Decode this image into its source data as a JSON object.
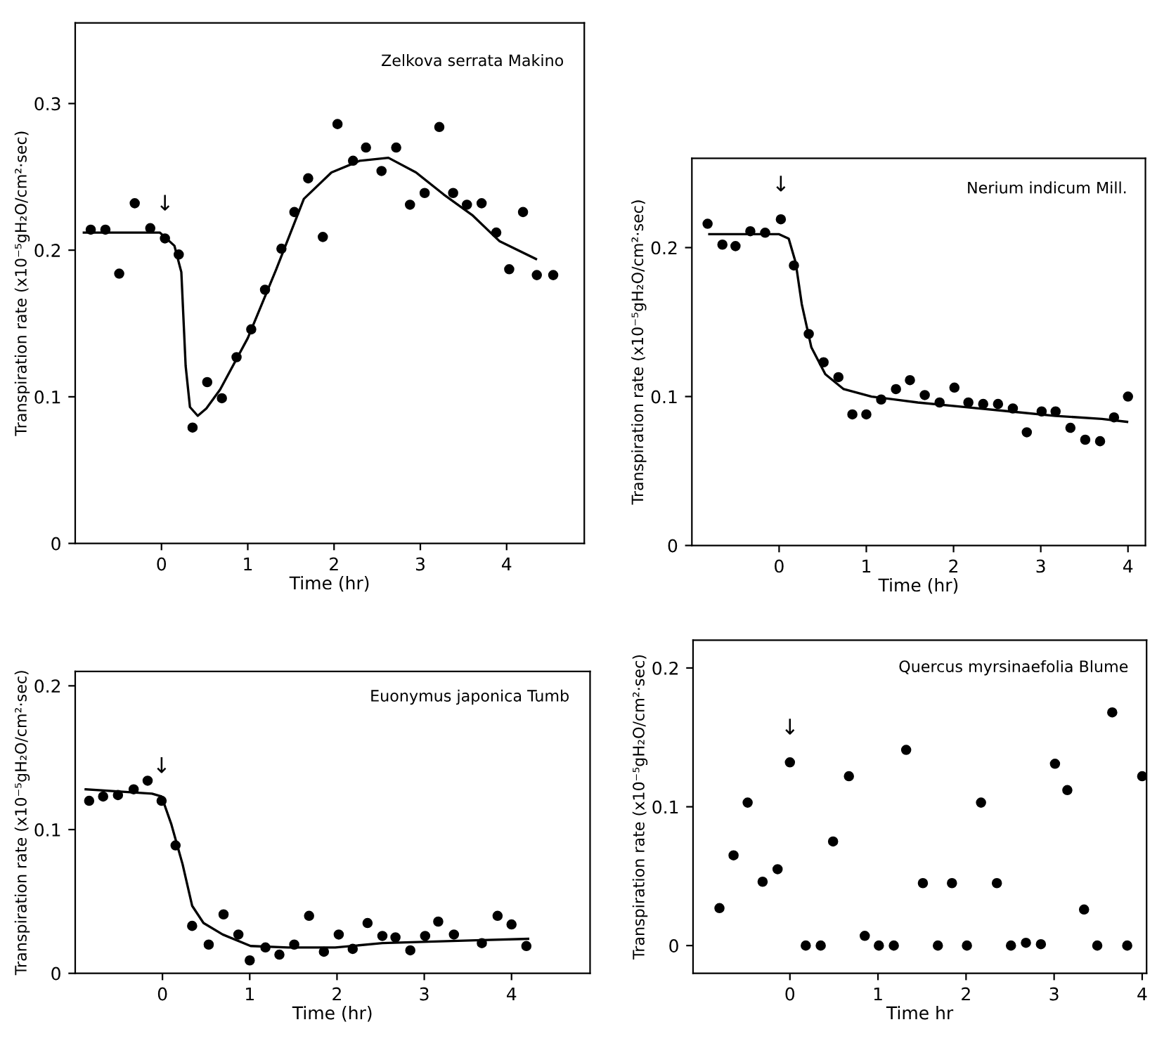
{
  "chart_data": [
    {
      "type": "scatter",
      "title": "Zelkova serrata Makino",
      "xlabel": "Time (hr)",
      "ylabel": "Transpiration rate (x10⁻⁵gH₂O/cm²·sec)",
      "xlim": [
        -1.0,
        4.9
      ],
      "ylim": [
        0,
        0.355
      ],
      "xticks": [
        0,
        1,
        2,
        3,
        4
      ],
      "yticks": [
        0,
        0.1,
        0.2,
        0.3
      ],
      "annotations": [
        {
          "text": "↓",
          "x": 0.04,
          "y": 0.208
        }
      ],
      "series": [
        {
          "marker": "circle",
          "color": "#000000",
          "x": [
            -0.82,
            -0.65,
            -0.49,
            -0.31,
            -0.13,
            0.04,
            0.2,
            0.36,
            0.53,
            0.7,
            0.87,
            1.04,
            1.2,
            1.39,
            1.54,
            1.7,
            1.87,
            2.04,
            2.22,
            2.37,
            2.55,
            2.72,
            2.88,
            3.05,
            3.22,
            3.38,
            3.54,
            3.71,
            3.88,
            4.03,
            4.19,
            4.35,
            4.54
          ],
          "values": [
            0.214,
            0.214,
            0.184,
            0.232,
            0.215,
            0.208,
            0.197,
            0.079,
            0.11,
            0.099,
            0.127,
            0.146,
            0.173,
            0.201,
            0.226,
            0.249,
            0.209,
            0.286,
            0.261,
            0.27,
            0.254,
            0.27,
            0.231,
            0.239,
            0.284,
            0.239,
            0.231,
            0.232,
            0.212,
            0.187,
            0.226,
            0.183,
            0.183
          ]
        },
        {
          "type": "line",
          "color": "#000000",
          "x": [
            -0.9,
            -0.02,
            0.15,
            0.23,
            0.28,
            0.33,
            0.42,
            0.52,
            0.68,
            1.0,
            1.33,
            1.65,
            1.97,
            2.3,
            2.63,
            2.95,
            3.27,
            3.6,
            3.92,
            4.34
          ],
          "values": [
            0.212,
            0.212,
            0.203,
            0.185,
            0.121,
            0.093,
            0.087,
            0.092,
            0.105,
            0.14,
            0.187,
            0.235,
            0.253,
            0.261,
            0.263,
            0.253,
            0.238,
            0.224,
            0.206,
            0.194
          ]
        }
      ]
    },
    {
      "type": "scatter",
      "title": "Nerium indicum Mill.",
      "xlabel": "Time (hr)",
      "ylabel": "Transpiration rate (x10⁻⁵gH₂O/cm²·sec)",
      "xlim": [
        -1.0,
        4.2
      ],
      "ylim": [
        0,
        0.26
      ],
      "xticks": [
        0,
        1,
        2,
        3,
        4
      ],
      "yticks": [
        0,
        0.1,
        0.2
      ],
      "annotations": [
        {
          "text": "↓",
          "x": 0.02,
          "y": 0.219
        }
      ],
      "series": [
        {
          "marker": "circle",
          "color": "#000000",
          "x": [
            -0.82,
            -0.65,
            -0.5,
            -0.33,
            -0.16,
            0.02,
            0.17,
            0.34,
            0.51,
            0.68,
            0.84,
            1.0,
            1.17,
            1.34,
            1.5,
            1.67,
            1.84,
            2.01,
            2.17,
            2.34,
            2.51,
            2.68,
            2.84,
            3.01,
            3.17,
            3.34,
            3.51,
            3.68,
            3.84,
            4.0
          ],
          "values": [
            0.216,
            0.202,
            0.201,
            0.211,
            0.21,
            0.219,
            0.188,
            0.142,
            0.123,
            0.113,
            0.088,
            0.088,
            0.098,
            0.105,
            0.111,
            0.101,
            0.096,
            0.106,
            0.096,
            0.095,
            0.095,
            0.092,
            0.076,
            0.09,
            0.09,
            0.079,
            0.071,
            0.07,
            0.086,
            0.1
          ]
        },
        {
          "type": "line",
          "color": "#000000",
          "x": [
            -0.8,
            0,
            0.11,
            0.19,
            0.26,
            0.37,
            0.53,
            0.74,
            1.06,
            1.59,
            2.12,
            2.65,
            3.17,
            3.7,
            3.99
          ],
          "values": [
            0.209,
            0.209,
            0.206,
            0.19,
            0.162,
            0.133,
            0.115,
            0.105,
            0.1,
            0.096,
            0.093,
            0.09,
            0.087,
            0.085,
            0.083
          ]
        }
      ]
    },
    {
      "type": "scatter",
      "title": "Euonymus japonica Tumb",
      "xlabel": "Time (hr)",
      "ylabel": "Transpiration rate (x10⁻⁵gH₂O/cm²·sec)",
      "xlim": [
        -1.0,
        4.9
      ],
      "ylim": [
        0,
        0.21
      ],
      "xticks": [
        0,
        1,
        2,
        3,
        4
      ],
      "yticks": [
        0,
        0.1,
        0.2
      ],
      "annotations": [
        {
          "text": "↓",
          "x": -0.01,
          "y": 0.12
        }
      ],
      "series": [
        {
          "marker": "circle",
          "color": "#000000",
          "x": [
            -0.84,
            -0.68,
            -0.51,
            -0.33,
            -0.17,
            -0.01,
            0.15,
            0.34,
            0.53,
            0.7,
            0.87,
            1.0,
            1.18,
            1.34,
            1.51,
            1.68,
            1.85,
            2.02,
            2.18,
            2.35,
            2.52,
            2.67,
            2.84,
            3.01,
            3.16,
            3.34,
            3.66,
            3.84,
            4.0,
            4.17
          ],
          "values": [
            0.12,
            0.123,
            0.124,
            0.128,
            0.134,
            0.12,
            0.089,
            0.033,
            0.02,
            0.041,
            0.027,
            0.009,
            0.018,
            0.013,
            0.02,
            0.04,
            0.015,
            0.027,
            0.017,
            0.035,
            0.026,
            0.025,
            0.016,
            0.026,
            0.036,
            0.027,
            0.021,
            0.04,
            0.034,
            0.019
          ]
        },
        {
          "type": "line",
          "color": "#000000",
          "x": [
            -0.88,
            -0.12,
            -0.01,
            0.1,
            0.23,
            0.34,
            0.47,
            0.69,
            1.01,
            1.44,
            1.98,
            2.52,
            3.05,
            3.59,
            4.19
          ],
          "values": [
            0.128,
            0.125,
            0.123,
            0.104,
            0.076,
            0.047,
            0.035,
            0.027,
            0.019,
            0.018,
            0.018,
            0.021,
            0.022,
            0.023,
            0.024
          ]
        }
      ]
    },
    {
      "type": "scatter",
      "title": "Quercus myrsinaefolia Blume",
      "xlabel": "Time hr",
      "ylabel": "Transpiration rate (x10⁻⁵gH₂O/cm²·sec)",
      "xlim": [
        -1.1,
        4.05
      ],
      "ylim": [
        -0.02,
        0.22
      ],
      "xticks": [
        0,
        1,
        2,
        3,
        4
      ],
      "yticks": [
        0,
        0.1,
        0.2
      ],
      "annotations": [
        {
          "text": "↓",
          "x": 0,
          "y": 0.132
        }
      ],
      "series": [
        {
          "marker": "circle",
          "color": "#000000",
          "x": [
            -0.8,
            -0.64,
            -0.48,
            -0.31,
            -0.14,
            0,
            0.18,
            0.35,
            0.49,
            0.67,
            0.85,
            1.01,
            1.18,
            1.32,
            1.51,
            1.68,
            1.84,
            2.01,
            2.17,
            2.35,
            2.51,
            2.68,
            2.85,
            3.01,
            3.15,
            3.34,
            3.49,
            3.66,
            3.83,
            4.0
          ],
          "values": [
            0.027,
            0.065,
            0.103,
            0.046,
            0.055,
            0.132,
            0,
            0,
            0.075,
            0.122,
            0.007,
            0,
            0,
            0.141,
            0.045,
            0,
            0.045,
            0,
            0.103,
            0.045,
            0,
            0.002,
            0.001,
            0.131,
            0.112,
            0.026,
            0,
            0.168,
            0,
            0.122
          ]
        }
      ]
    }
  ]
}
